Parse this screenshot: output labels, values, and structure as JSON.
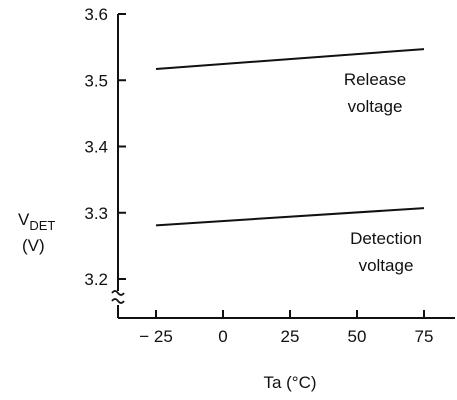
{
  "chart_data": {
    "type": "line",
    "xlabel": "Ta (°C)",
    "ylabel_main": "V",
    "ylabel_sub": "DET",
    "ylabel_unit": "(V)",
    "xlim": [
      -37,
      87
    ],
    "ylim": [
      3.15,
      3.6
    ],
    "x_ticks": [
      -25,
      0,
      25,
      50,
      75
    ],
    "x_tick_labels": [
      "− 25",
      "0",
      "25",
      "50",
      "75"
    ],
    "y_ticks": [
      3.2,
      3.3,
      3.4,
      3.5,
      3.6
    ],
    "y_tick_labels": [
      "3.2",
      "3.3",
      "3.4",
      "3.5",
      "3.6"
    ],
    "axis_break": true,
    "grid": false,
    "series": [
      {
        "label_lines": [
          "Release",
          "voltage"
        ],
        "x": [
          -25,
          75
        ],
        "y": [
          3.517,
          3.547
        ]
      },
      {
        "label_lines": [
          "Detection",
          "voltage"
        ],
        "x": [
          -25,
          75
        ],
        "y": [
          3.281,
          3.307
        ]
      }
    ]
  }
}
